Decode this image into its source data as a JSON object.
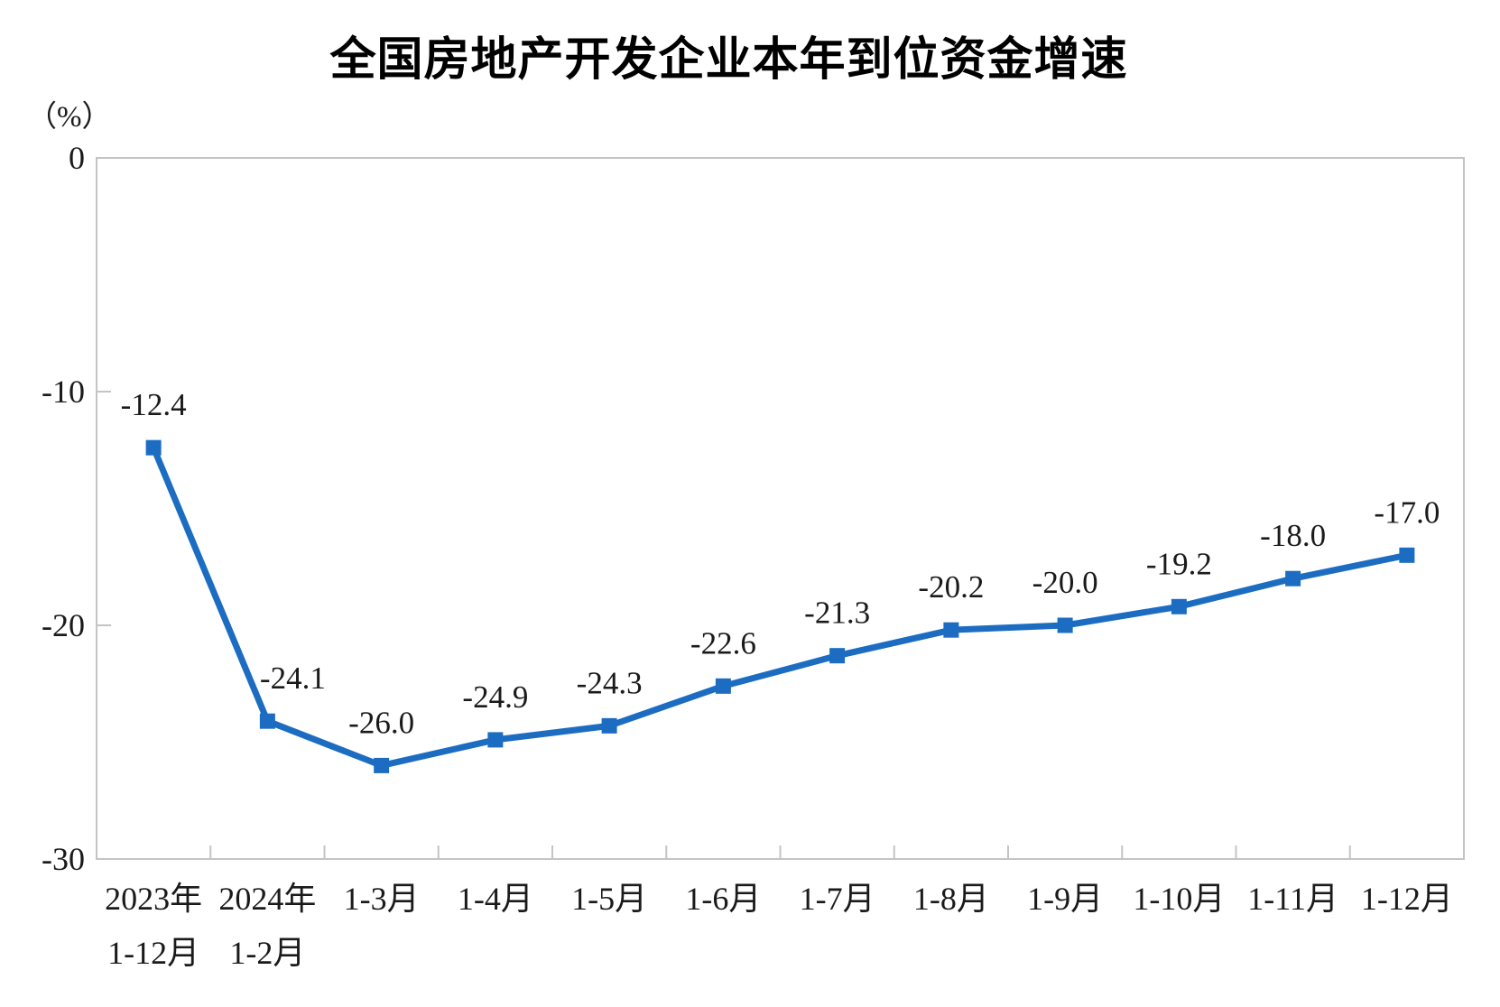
{
  "chart_data": {
    "type": "line",
    "title": "全国房地产开发企业本年到位资金增速",
    "unit_label": "（%）",
    "categories": [
      [
        "2023年",
        "1-12月"
      ],
      [
        "2024年",
        "1-2月"
      ],
      [
        "1-3月"
      ],
      [
        "1-4月"
      ],
      [
        "1-5月"
      ],
      [
        "1-6月"
      ],
      [
        "1-7月"
      ],
      [
        "1-8月"
      ],
      [
        "1-9月"
      ],
      [
        "1-10月"
      ],
      [
        "1-11月"
      ],
      [
        "1-12月"
      ]
    ],
    "values": [
      -12.4,
      -24.1,
      -26.0,
      -24.9,
      -24.3,
      -22.6,
      -21.3,
      -20.2,
      -20.0,
      -19.2,
      -18.0,
      -17.0
    ],
    "data_labels": [
      "-12.4",
      "-24.1",
      "-26.0",
      "-24.9",
      "-24.3",
      "-22.6",
      "-21.3",
      "-20.2",
      "-20.0",
      "-19.2",
      "-18.0",
      "-17.0"
    ],
    "label_dx": [
      0,
      28,
      0,
      0,
      0,
      0,
      0,
      0,
      0,
      0,
      0,
      0
    ],
    "y_ticks": [
      0,
      -10,
      -20,
      -30
    ],
    "y_tick_labels": [
      "0",
      "-10",
      "-20",
      "-30"
    ],
    "ylim": [
      -30,
      0
    ],
    "xlabel": "",
    "ylabel": "（%）",
    "grid": false,
    "legend": "none",
    "colors": {
      "series": "#1C6DC1",
      "axis": "#c4c4c4",
      "text": "#1a1a1a"
    }
  }
}
